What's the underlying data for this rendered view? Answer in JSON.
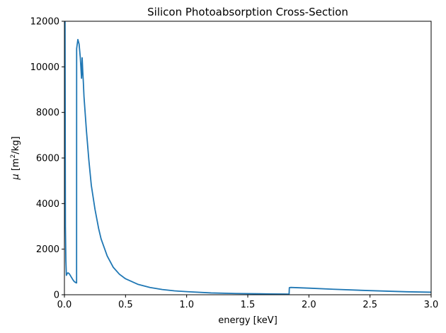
{
  "chart_data": {
    "type": "line",
    "title": "Silicon Photoabsorption Cross-Section",
    "xlabel": "energy [keV]",
    "ylabel_prefix": "μ",
    "ylabel_unit_pre": " [m",
    "ylabel_unit_sup": "2",
    "ylabel_unit_post": "/kg]",
    "xlim": [
      0,
      3.0
    ],
    "ylim": [
      0,
      12000
    ],
    "xticks": [
      0.0,
      0.5,
      1.0,
      1.5,
      2.0,
      2.5,
      3.0
    ],
    "xtick_labels": [
      "0.0",
      "0.5",
      "1.0",
      "1.5",
      "2.0",
      "2.5",
      "3.0"
    ],
    "yticks": [
      0,
      2000,
      4000,
      6000,
      8000,
      10000,
      12000
    ],
    "ytick_labels": [
      "0",
      "2000",
      "4000",
      "6000",
      "8000",
      "10000",
      "12000"
    ],
    "grid": false,
    "line_color": "#1f77b4",
    "series": [
      {
        "x": [
          0.005,
          0.008,
          0.012,
          0.016,
          0.02,
          0.025,
          0.03,
          0.04,
          0.05,
          0.06,
          0.07,
          0.08,
          0.09,
          0.0995,
          0.1,
          0.11,
          0.12,
          0.13,
          0.14,
          0.145,
          0.15,
          0.155,
          0.16,
          0.18,
          0.2,
          0.22,
          0.25,
          0.28,
          0.3,
          0.35,
          0.4,
          0.45,
          0.5,
          0.6,
          0.7,
          0.8,
          0.9,
          1.0,
          1.2,
          1.4,
          1.6,
          1.8,
          1.838,
          1.84,
          1.85,
          2.0,
          2.2,
          2.5,
          2.8,
          3.0
        ],
        "y": [
          12000,
          3000,
          1500,
          850,
          900,
          950,
          960,
          920,
          830,
          740,
          650,
          580,
          540,
          520,
          10800,
          11200,
          11000,
          10400,
          9500,
          10400,
          9800,
          9300,
          8700,
          7200,
          5900,
          4800,
          3750,
          2900,
          2450,
          1700,
          1200,
          900,
          700,
          460,
          320,
          230,
          170,
          135,
          80,
          55,
          40,
          30,
          28,
          310,
          320,
          290,
          240,
          180,
          130,
          110
        ]
      }
    ]
  }
}
